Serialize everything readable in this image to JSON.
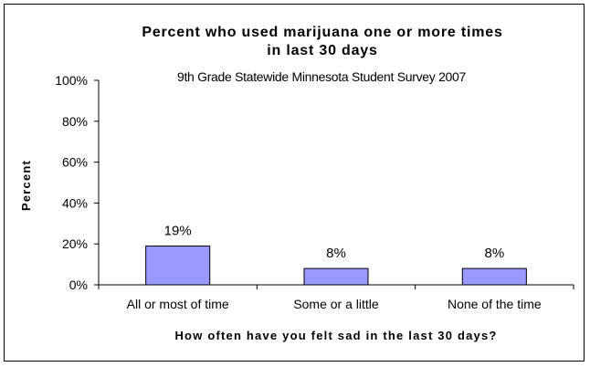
{
  "chart_data": {
    "type": "bar",
    "title_line1": "Percent who used marijuana one or more times",
    "title_line2": "in last 30 days",
    "subtitle": "9th Grade Statewide Minnesota Student Survey 2007",
    "xlabel": "How often have you felt sad in the last 30 days?",
    "ylabel": "Percent",
    "ylim": [
      0,
      100
    ],
    "yticks": [
      0,
      20,
      40,
      60,
      80,
      100
    ],
    "ytick_labels": [
      "0%",
      "20%",
      "40%",
      "60%",
      "80%",
      "100%"
    ],
    "categories": [
      "All or most of time",
      "Some or a little",
      "None of the time"
    ],
    "values": [
      19,
      8,
      8
    ],
    "data_labels": [
      "19%",
      "8%",
      "8%"
    ],
    "bar_color": "#9999ff",
    "grid": false,
    "legend": "none"
  }
}
